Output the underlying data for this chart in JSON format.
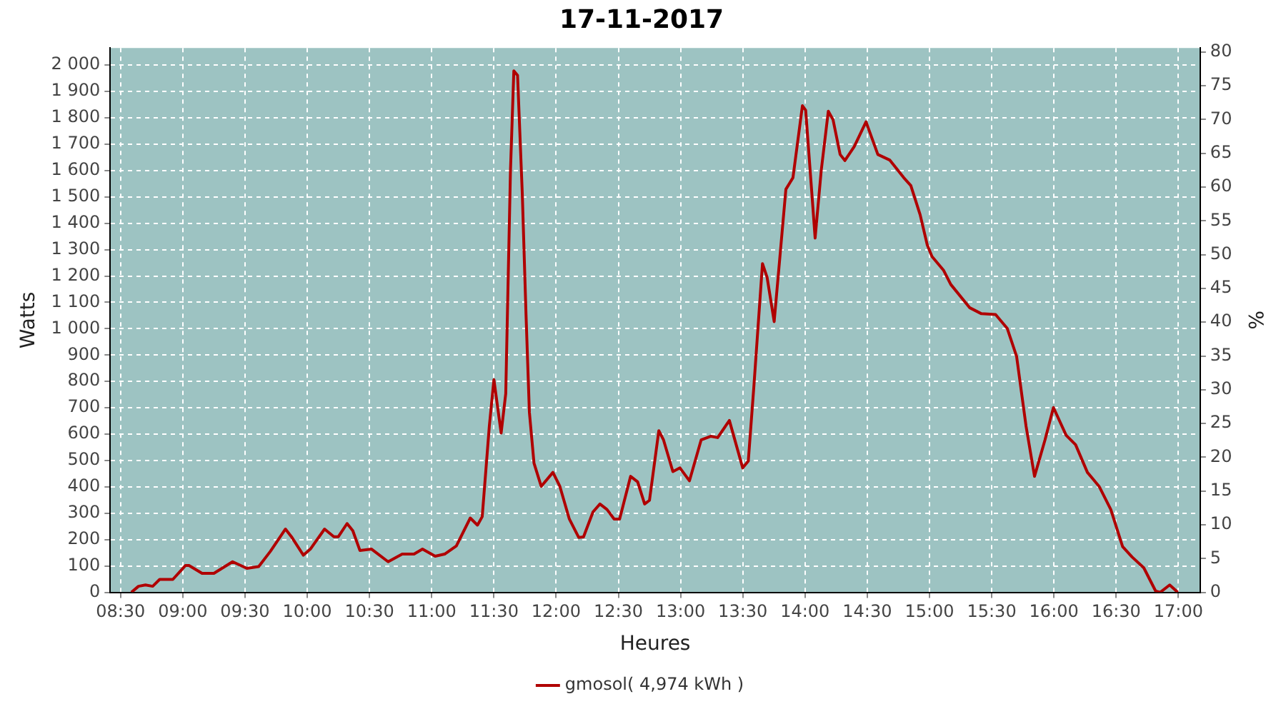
{
  "chart_data": {
    "type": "line",
    "title": "17-11-2017",
    "xlabel": "Heures",
    "ylabel": "Watts",
    "y2label": "%",
    "x": [
      8.587,
      8.644,
      8.7,
      8.758,
      8.814,
      8.92,
      9.022,
      9.05,
      9.155,
      9.25,
      9.4,
      9.515,
      9.61,
      9.703,
      9.825,
      9.873,
      9.969,
      10.025,
      10.139,
      10.214,
      10.25,
      10.32,
      10.366,
      10.423,
      10.517,
      10.65,
      10.763,
      10.858,
      10.926,
      11.028,
      11.104,
      11.198,
      11.31,
      11.368,
      11.406,
      11.463,
      11.5,
      11.558,
      11.595,
      11.633,
      11.66,
      11.69,
      11.728,
      11.758,
      11.785,
      11.822,
      11.88,
      11.974,
      12.03,
      12.106,
      12.182,
      12.22,
      12.296,
      12.352,
      12.409,
      12.466,
      12.51,
      12.598,
      12.655,
      12.711,
      12.75,
      12.825,
      12.863,
      12.938,
      12.995,
      13.071,
      13.165,
      13.241,
      13.298,
      13.392,
      13.499,
      13.544,
      13.59,
      13.658,
      13.695,
      13.752,
      13.8,
      13.846,
      13.903,
      13.979,
      14.005,
      14.055,
      14.081,
      14.13,
      14.187,
      14.225,
      14.282,
      14.32,
      14.395,
      14.49,
      14.585,
      14.68,
      14.793,
      14.85,
      14.925,
      14.982,
      15.02,
      15.114,
      15.171,
      15.322,
      15.417,
      15.531,
      15.625,
      15.7,
      15.776,
      15.844,
      15.928,
      15.996,
      16.098,
      16.174,
      16.269,
      16.363,
      16.457,
      16.552,
      16.628,
      16.722,
      16.817,
      16.854,
      16.93,
      16.995
    ],
    "series": [
      {
        "name": "gmosol( 4,974 kWh )",
        "color": "#b00000",
        "values": [
          0,
          23,
          28,
          23,
          49,
          49,
          102,
          102,
          72,
          72,
          116,
          91,
          98,
          155,
          240,
          211,
          141,
          164,
          240,
          211,
          211,
          261,
          234,
          159,
          164,
          116,
          145,
          145,
          164,
          137,
          145,
          176,
          282,
          255,
          287,
          630,
          807,
          604,
          754,
          1600,
          1978,
          1961,
          1512,
          1053,
          683,
          490,
          402,
          455,
          402,
          278,
          208,
          210,
          305,
          335,
          314,
          278,
          278,
          440,
          419,
          335,
          349,
          613,
          578,
          458,
          472,
          423,
          578,
          592,
          587,
          652,
          472,
          498,
          789,
          1247,
          1195,
          1027,
          1283,
          1529,
          1573,
          1846,
          1829,
          1512,
          1344,
          1600,
          1825,
          1793,
          1661,
          1638,
          1691,
          1785,
          1661,
          1640,
          1573,
          1543,
          1432,
          1318,
          1274,
          1221,
          1168,
          1080,
          1057,
          1054,
          1001,
          895,
          630,
          440,
          578,
          701,
          596,
          560,
          455,
          402,
          314,
          173,
          134,
          93,
          5,
          0,
          28,
          0
        ]
      }
    ],
    "xlim": [
      8.417,
      17.175
    ],
    "xticks": [
      {
        "value": 8.5,
        "label": "08:30"
      },
      {
        "value": 9,
        "label": "09:00"
      },
      {
        "value": 9.5,
        "label": "09:30"
      },
      {
        "value": 10,
        "label": "10:00"
      },
      {
        "value": 10.5,
        "label": "10:30"
      },
      {
        "value": 11,
        "label": "11:00"
      },
      {
        "value": 11.5,
        "label": "11:30"
      },
      {
        "value": 12,
        "label": "12:00"
      },
      {
        "value": 12.5,
        "label": "12:30"
      },
      {
        "value": 13,
        "label": "13:00"
      },
      {
        "value": 13.5,
        "label": "13:30"
      },
      {
        "value": 14,
        "label": "14:00"
      },
      {
        "value": 14.5,
        "label": "14:30"
      },
      {
        "value": 15,
        "label": "15:00"
      },
      {
        "value": 15.5,
        "label": "15:30"
      },
      {
        "value": 16,
        "label": "16:00"
      },
      {
        "value": 16.5,
        "label": "16:30"
      },
      {
        "value": 17,
        "label": "17:00"
      }
    ],
    "ylim": [
      0,
      2065
    ],
    "yticks": [
      0,
      100,
      200,
      300,
      400,
      500,
      600,
      700,
      800,
      900,
      {
        "value": 1000,
        "label": "1 000"
      },
      {
        "value": 1100,
        "label": "1 100"
      },
      {
        "value": 1200,
        "label": "1 200"
      },
      {
        "value": 1300,
        "label": "1 300"
      },
      {
        "value": 1400,
        "label": "1 400"
      },
      {
        "value": 1500,
        "label": "1 500"
      },
      {
        "value": 1600,
        "label": "1 600"
      },
      {
        "value": 1700,
        "label": "1 700"
      },
      {
        "value": 1800,
        "label": "1 800"
      },
      {
        "value": 1900,
        "label": "1 900"
      },
      {
        "value": 2000,
        "label": "2 000"
      }
    ],
    "y2lim": [
      0,
      80.6
    ],
    "y2ticks": [
      0,
      5,
      10,
      15,
      20,
      25,
      30,
      35,
      40,
      45,
      50,
      55,
      60,
      65,
      70,
      75,
      80
    ],
    "grid": true,
    "legend": "bottom",
    "marker": "none",
    "line_style": "solid"
  }
}
